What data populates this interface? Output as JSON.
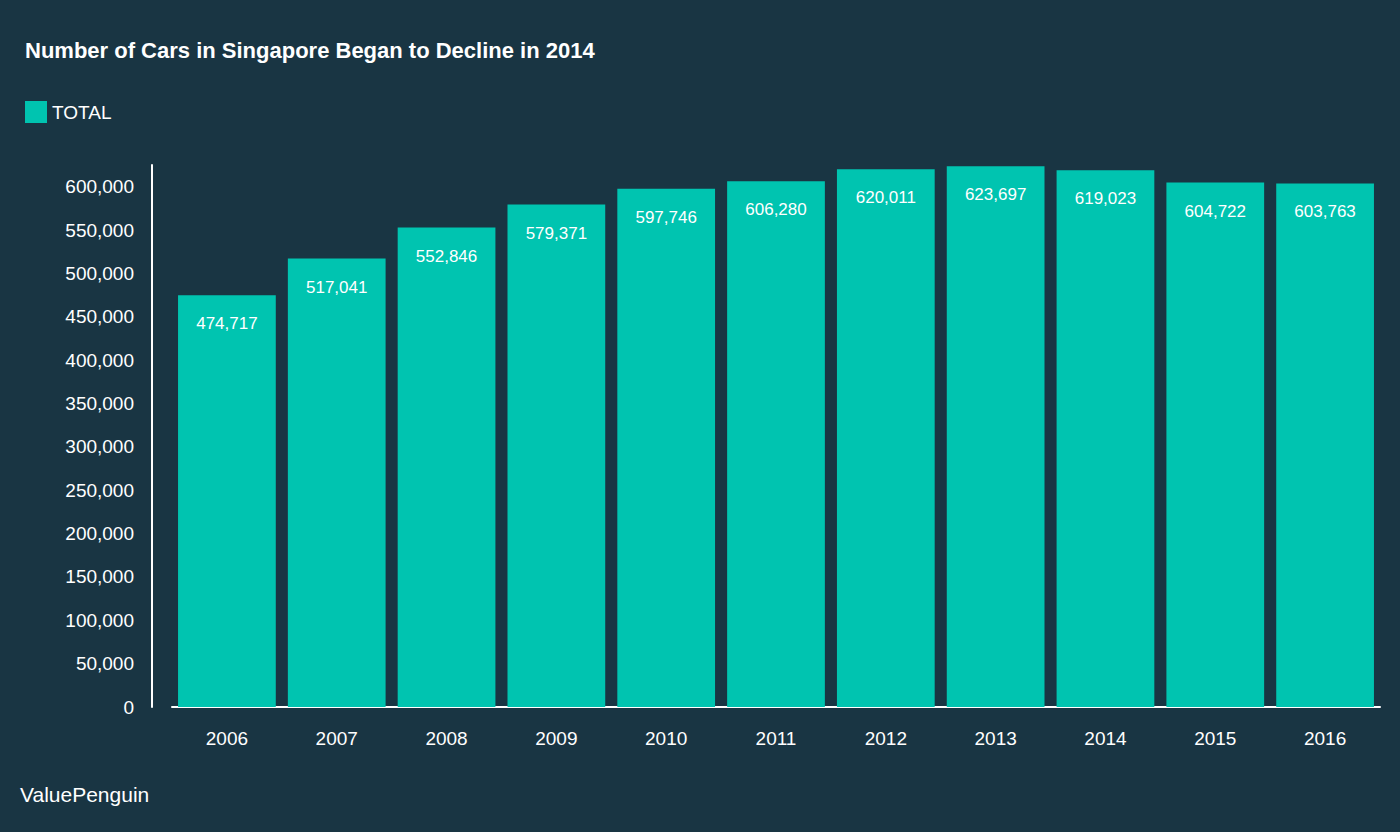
{
  "chart_data": {
    "type": "bar",
    "title": "Number of Cars in Singapore Began to Decline in 2014",
    "categories": [
      "2006",
      "2007",
      "2008",
      "2009",
      "2010",
      "2011",
      "2012",
      "2013",
      "2014",
      "2015",
      "2016"
    ],
    "series": [
      {
        "name": "TOTAL",
        "color": "#00c4b0",
        "values": [
          474717,
          517041,
          552846,
          579371,
          597746,
          606280,
          620011,
          623697,
          619023,
          604722,
          603763
        ],
        "value_labels": [
          "474,717",
          "517,041",
          "552,846",
          "579,371",
          "597,746",
          "606,280",
          "620,011",
          "623,697",
          "619,023",
          "604,722",
          "603,763"
        ]
      }
    ],
    "ylim": [
      0,
      625000
    ],
    "yticks": [
      0,
      {
        "value": 50000,
        "label": "50,000"
      },
      {
        "value": 100000,
        "label": "100,000"
      },
      {
        "value": 150000,
        "label": "150,000"
      },
      {
        "value": 200000,
        "label": "200,000"
      },
      {
        "value": 250000,
        "label": "250,000"
      },
      {
        "value": 300000,
        "label": "300,000"
      },
      {
        "value": 350000,
        "label": "350,000"
      },
      {
        "value": 400000,
        "label": "400,000"
      },
      {
        "value": 450000,
        "label": "450,000"
      },
      {
        "value": 500000,
        "label": "500,000"
      },
      {
        "value": 550000,
        "label": "550,000"
      },
      {
        "value": 600000,
        "label": "600,000"
      }
    ],
    "grid": false,
    "legend": "top-left",
    "data_labels": true,
    "annotations": [
      "ValuePenguin"
    ]
  }
}
